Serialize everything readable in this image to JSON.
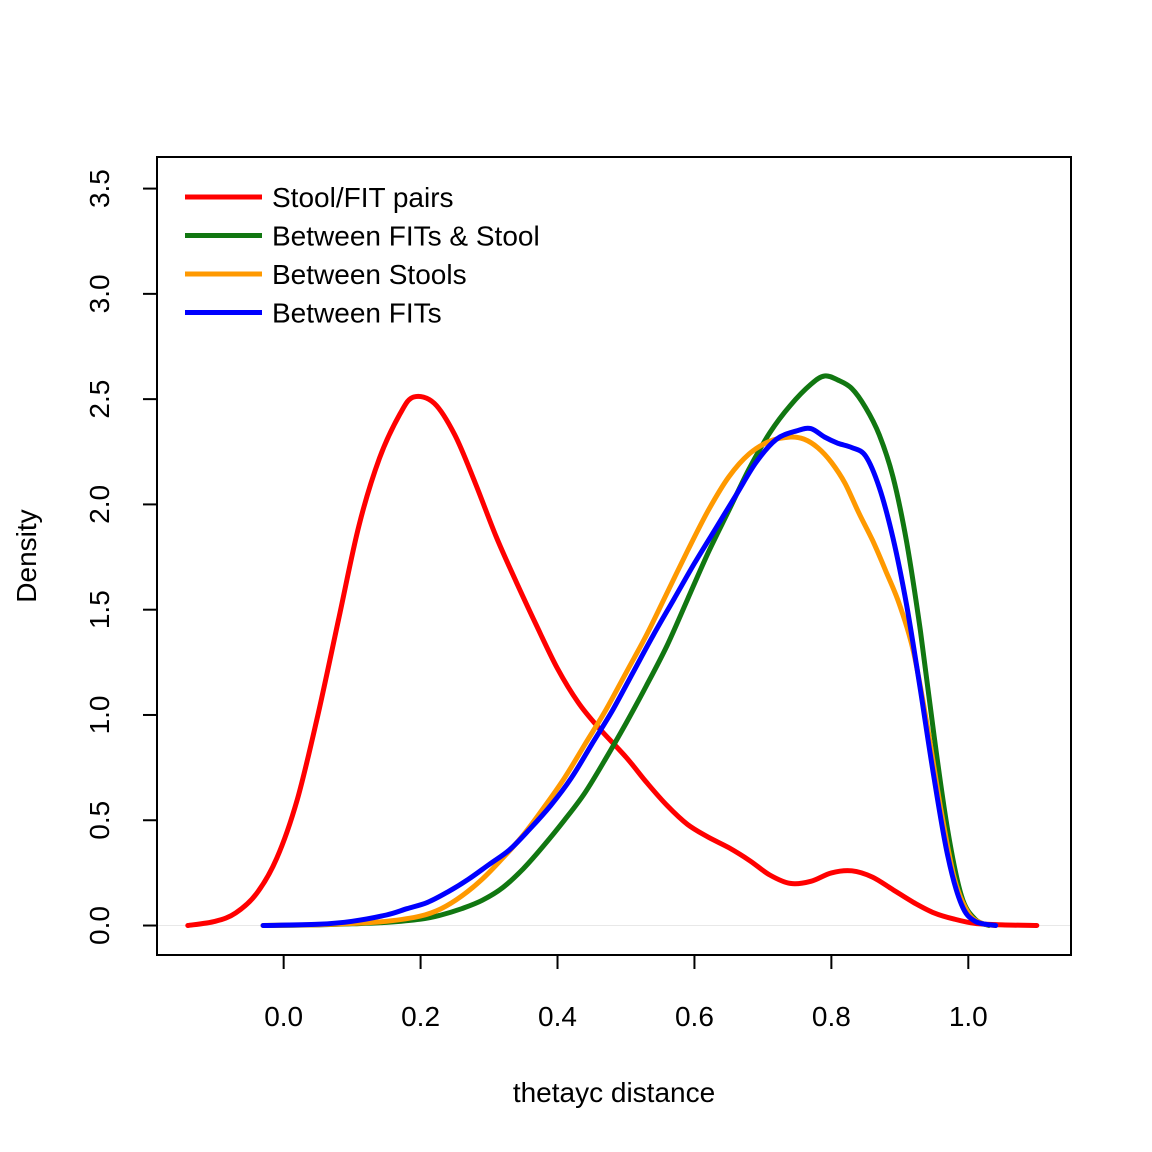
{
  "chart_data": {
    "type": "line",
    "title": "",
    "xlabel": "thetayc distance",
    "ylabel": "Density",
    "xlim": [
      -0.185,
      1.15
    ],
    "ylim": [
      -0.14,
      3.65
    ],
    "xticks": [
      "0.0",
      "0.2",
      "0.4",
      "0.6",
      "0.8",
      "1.0"
    ],
    "yticks": [
      "0.0",
      "0.5",
      "1.0",
      "1.5",
      "2.0",
      "2.5",
      "3.0",
      "3.5"
    ],
    "grid": false,
    "legend_position": "top-left",
    "baseline": 0,
    "series": [
      {
        "name": "Stool/FIT pairs",
        "color": "#ff0000",
        "points": [
          [
            -0.14,
            0.0
          ],
          [
            -0.1,
            0.02
          ],
          [
            -0.07,
            0.06
          ],
          [
            -0.04,
            0.15
          ],
          [
            -0.01,
            0.32
          ],
          [
            0.02,
            0.6
          ],
          [
            0.05,
            1.0
          ],
          [
            0.08,
            1.45
          ],
          [
            0.11,
            1.9
          ],
          [
            0.14,
            2.22
          ],
          [
            0.17,
            2.43
          ],
          [
            0.19,
            2.51
          ],
          [
            0.22,
            2.48
          ],
          [
            0.25,
            2.33
          ],
          [
            0.28,
            2.1
          ],
          [
            0.31,
            1.85
          ],
          [
            0.34,
            1.63
          ],
          [
            0.37,
            1.42
          ],
          [
            0.4,
            1.22
          ],
          [
            0.43,
            1.06
          ],
          [
            0.46,
            0.94
          ],
          [
            0.5,
            0.8
          ],
          [
            0.53,
            0.68
          ],
          [
            0.56,
            0.57
          ],
          [
            0.59,
            0.48
          ],
          [
            0.62,
            0.42
          ],
          [
            0.65,
            0.37
          ],
          [
            0.68,
            0.31
          ],
          [
            0.71,
            0.24
          ],
          [
            0.74,
            0.2
          ],
          [
            0.77,
            0.21
          ],
          [
            0.8,
            0.25
          ],
          [
            0.83,
            0.26
          ],
          [
            0.86,
            0.23
          ],
          [
            0.89,
            0.17
          ],
          [
            0.92,
            0.11
          ],
          [
            0.95,
            0.06
          ],
          [
            0.98,
            0.03
          ],
          [
            1.01,
            0.01
          ],
          [
            1.05,
            0.003
          ],
          [
            1.1,
            0.0
          ]
        ]
      },
      {
        "name": "Between FITs & Stool",
        "color": "#117711",
        "points": [
          [
            -0.03,
            0.0
          ],
          [
            0.05,
            0.003
          ],
          [
            0.1,
            0.008
          ],
          [
            0.15,
            0.015
          ],
          [
            0.2,
            0.03
          ],
          [
            0.23,
            0.05
          ],
          [
            0.26,
            0.08
          ],
          [
            0.29,
            0.12
          ],
          [
            0.32,
            0.18
          ],
          [
            0.35,
            0.27
          ],
          [
            0.38,
            0.38
          ],
          [
            0.41,
            0.5
          ],
          [
            0.44,
            0.63
          ],
          [
            0.47,
            0.79
          ],
          [
            0.5,
            0.96
          ],
          [
            0.53,
            1.14
          ],
          [
            0.56,
            1.33
          ],
          [
            0.59,
            1.55
          ],
          [
            0.62,
            1.77
          ],
          [
            0.65,
            1.97
          ],
          [
            0.68,
            2.17
          ],
          [
            0.71,
            2.34
          ],
          [
            0.74,
            2.47
          ],
          [
            0.77,
            2.57
          ],
          [
            0.79,
            2.61
          ],
          [
            0.81,
            2.59
          ],
          [
            0.83,
            2.55
          ],
          [
            0.85,
            2.46
          ],
          [
            0.87,
            2.33
          ],
          [
            0.89,
            2.13
          ],
          [
            0.91,
            1.82
          ],
          [
            0.93,
            1.4
          ],
          [
            0.95,
            0.9
          ],
          [
            0.97,
            0.45
          ],
          [
            0.99,
            0.14
          ],
          [
            1.01,
            0.03
          ],
          [
            1.03,
            0.0
          ]
        ]
      },
      {
        "name": "Between Stools",
        "color": "#ff9900",
        "points": [
          [
            -0.03,
            0.0
          ],
          [
            0.05,
            0.004
          ],
          [
            0.1,
            0.01
          ],
          [
            0.15,
            0.02
          ],
          [
            0.2,
            0.045
          ],
          [
            0.23,
            0.08
          ],
          [
            0.26,
            0.14
          ],
          [
            0.29,
            0.22
          ],
          [
            0.32,
            0.32
          ],
          [
            0.35,
            0.43
          ],
          [
            0.38,
            0.56
          ],
          [
            0.41,
            0.7
          ],
          [
            0.44,
            0.86
          ],
          [
            0.47,
            1.02
          ],
          [
            0.5,
            1.2
          ],
          [
            0.53,
            1.38
          ],
          [
            0.56,
            1.58
          ],
          [
            0.59,
            1.78
          ],
          [
            0.62,
            1.97
          ],
          [
            0.65,
            2.13
          ],
          [
            0.68,
            2.24
          ],
          [
            0.71,
            2.3
          ],
          [
            0.74,
            2.32
          ],
          [
            0.76,
            2.31
          ],
          [
            0.78,
            2.27
          ],
          [
            0.8,
            2.2
          ],
          [
            0.82,
            2.1
          ],
          [
            0.84,
            1.96
          ],
          [
            0.86,
            1.83
          ],
          [
            0.88,
            1.68
          ],
          [
            0.9,
            1.52
          ],
          [
            0.92,
            1.3
          ],
          [
            0.94,
            0.95
          ],
          [
            0.96,
            0.55
          ],
          [
            0.98,
            0.22
          ],
          [
            1.0,
            0.06
          ],
          [
            1.02,
            0.01
          ],
          [
            1.04,
            0.0
          ]
        ]
      },
      {
        "name": "Between FITs",
        "color": "#0000ff",
        "points": [
          [
            -0.03,
            0.0
          ],
          [
            0.05,
            0.006
          ],
          [
            0.1,
            0.02
          ],
          [
            0.15,
            0.05
          ],
          [
            0.18,
            0.08
          ],
          [
            0.21,
            0.11
          ],
          [
            0.24,
            0.16
          ],
          [
            0.27,
            0.22
          ],
          [
            0.3,
            0.29
          ],
          [
            0.33,
            0.36
          ],
          [
            0.36,
            0.46
          ],
          [
            0.39,
            0.57
          ],
          [
            0.42,
            0.7
          ],
          [
            0.45,
            0.86
          ],
          [
            0.48,
            1.02
          ],
          [
            0.51,
            1.2
          ],
          [
            0.54,
            1.38
          ],
          [
            0.57,
            1.55
          ],
          [
            0.6,
            1.72
          ],
          [
            0.63,
            1.88
          ],
          [
            0.66,
            2.04
          ],
          [
            0.69,
            2.2
          ],
          [
            0.72,
            2.31
          ],
          [
            0.75,
            2.35
          ],
          [
            0.77,
            2.36
          ],
          [
            0.79,
            2.32
          ],
          [
            0.81,
            2.29
          ],
          [
            0.83,
            2.27
          ],
          [
            0.85,
            2.23
          ],
          [
            0.87,
            2.08
          ],
          [
            0.89,
            1.84
          ],
          [
            0.91,
            1.52
          ],
          [
            0.93,
            1.12
          ],
          [
            0.95,
            0.7
          ],
          [
            0.97,
            0.33
          ],
          [
            0.99,
            0.1
          ],
          [
            1.01,
            0.02
          ],
          [
            1.04,
            0.0
          ]
        ]
      }
    ]
  }
}
